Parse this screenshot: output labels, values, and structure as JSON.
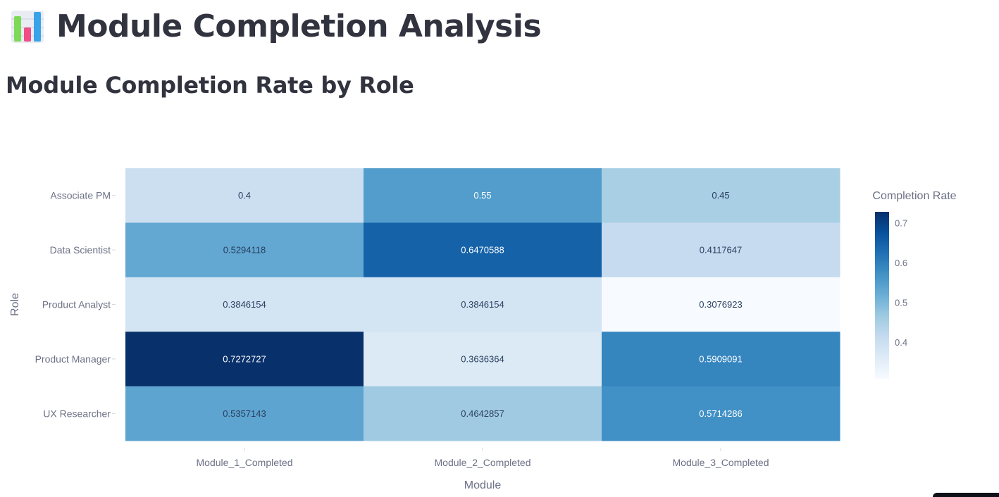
{
  "page": {
    "title": "Module Completion Analysis",
    "title_icon": "bar-chart-icon",
    "section_title": "Module Completion Rate by Role"
  },
  "chart_data": {
    "type": "heatmap",
    "title": "",
    "xlabel": "Module",
    "ylabel": "Role",
    "x": [
      "Module_1_Completed",
      "Module_2_Completed",
      "Module_3_Completed"
    ],
    "y": [
      "Associate PM",
      "Data Scientist",
      "Product Analyst",
      "Product Manager",
      "UX Researcher"
    ],
    "z": [
      [
        0.4,
        0.55,
        0.45
      ],
      [
        0.5294118,
        0.6470588,
        0.4117647
      ],
      [
        0.3846154,
        0.3846154,
        0.3076923
      ],
      [
        0.7272727,
        0.3636364,
        0.5909091
      ],
      [
        0.5357143,
        0.4642857,
        0.5714286
      ]
    ],
    "text": [
      [
        "0.4",
        "0.55",
        "0.45"
      ],
      [
        "0.5294118",
        "0.6470588",
        "0.4117647"
      ],
      [
        "0.3846154",
        "0.3846154",
        "0.3076923"
      ],
      [
        "0.7272727",
        "0.3636364",
        "0.5909091"
      ],
      [
        "0.5357143",
        "0.4642857",
        "0.5714286"
      ]
    ],
    "colorscale": "Blues",
    "colorbar": {
      "title": "Completion Rate",
      "ticks": [
        "0.4",
        "0.5",
        "0.6",
        "0.7"
      ],
      "tick_values": [
        0.4,
        0.5,
        0.6,
        0.7
      ],
      "range": [
        0.3076923,
        0.7272727
      ]
    },
    "colors": {
      "axis_text": "#6b7085",
      "cell_text_dark": "#2a3f5f",
      "cell_text_light": "#ffffff"
    }
  }
}
